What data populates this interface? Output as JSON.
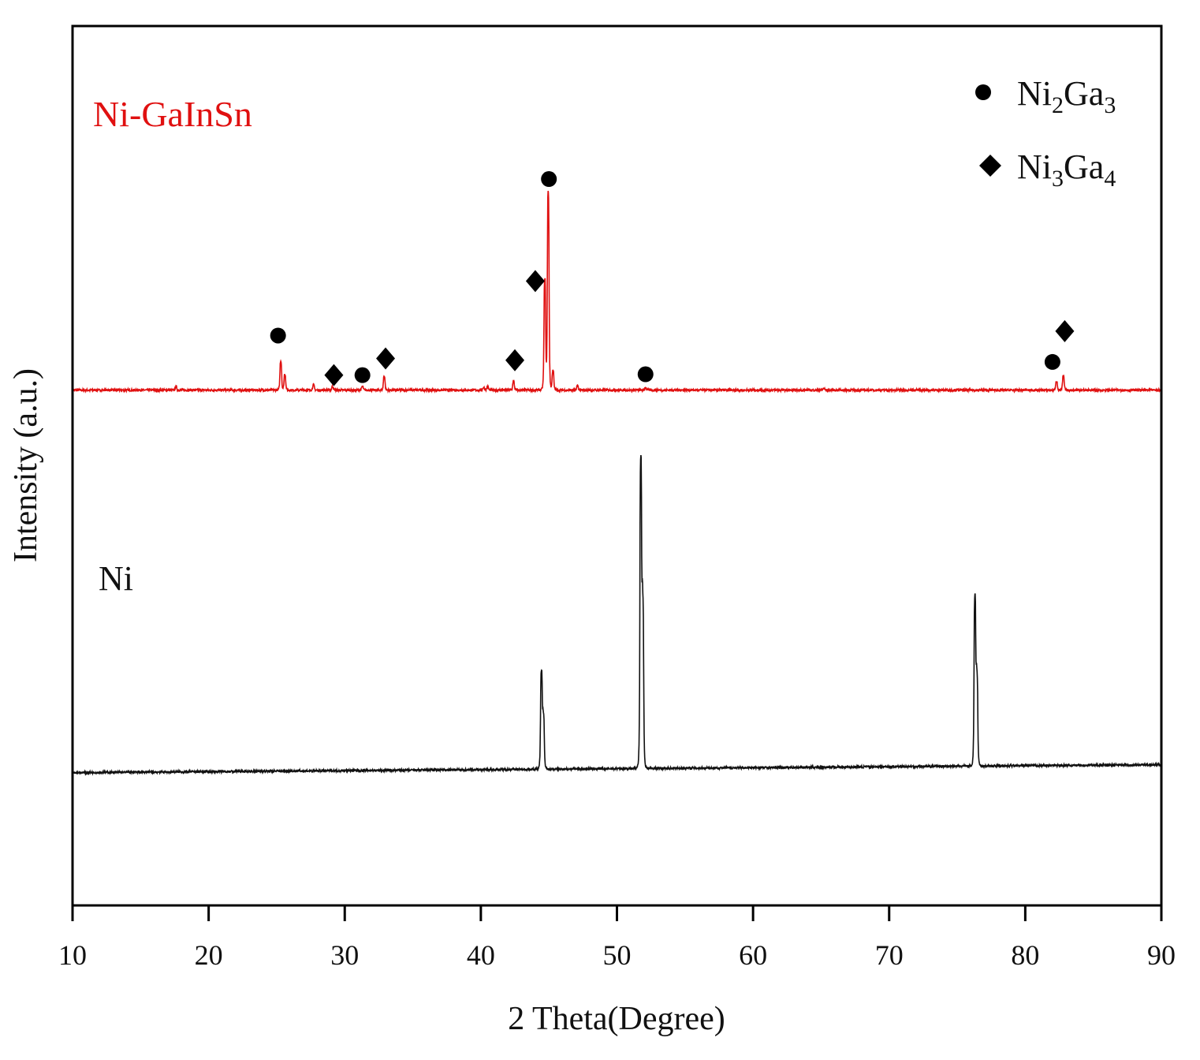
{
  "chart_data": {
    "type": "line",
    "title": "",
    "xlabel": "2 Theta(Degree)",
    "ylabel": "Intensity (a.u.)",
    "xlim": [
      10,
      90
    ],
    "ylim": [
      0,
      1000
    ],
    "xticks": [
      "10",
      "20",
      "30",
      "40",
      "50",
      "60",
      "70",
      "80",
      "90"
    ],
    "grid": false,
    "series": [
      {
        "name": "Ni-GaInSn",
        "label": "Ni-GaInSn",
        "color": "#e01010",
        "baseline": [
          586,
          586
        ],
        "peaks": [
          [
            17.6,
            4
          ],
          [
            25.3,
            33
          ],
          [
            25.6,
            18
          ],
          [
            27.7,
            6
          ],
          [
            29.1,
            4
          ],
          [
            31.3,
            4
          ],
          [
            32.9,
            16
          ],
          [
            40.2,
            3
          ],
          [
            40.5,
            4
          ],
          [
            42.4,
            10
          ],
          [
            44.7,
            125
          ],
          [
            44.95,
            225
          ],
          [
            45.3,
            22
          ],
          [
            47.1,
            5
          ],
          [
            52.1,
            3
          ],
          [
            65.2,
            2
          ],
          [
            82.3,
            10
          ],
          [
            82.8,
            16
          ]
        ]
      },
      {
        "name": "Ni",
        "label": "Ni",
        "color": "#111111",
        "baseline": [
          151,
          160
        ],
        "peaks": [
          [
            44.45,
            110
          ],
          [
            44.6,
            60
          ],
          [
            51.75,
            345
          ],
          [
            51.9,
            185
          ],
          [
            76.3,
            190
          ],
          [
            76.45,
            100
          ]
        ]
      }
    ],
    "markers": {
      "Ni2Ga3": [
        [
          25.1,
          648
        ],
        [
          31.3,
          603
        ],
        [
          45.0,
          826
        ],
        [
          52.1,
          604
        ],
        [
          82.0,
          618
        ]
      ],
      "Ni3Ga4": [
        [
          29.2,
          603
        ],
        [
          33.0,
          622
        ],
        [
          42.5,
          620
        ],
        [
          44.0,
          710
        ],
        [
          82.9,
          653
        ]
      ]
    },
    "legend": {
      "placement": "top-right",
      "entries": [
        {
          "symbol": "circle",
          "base1": "Ni",
          "sub1": "2",
          "base2": "Ga",
          "sub2": "3"
        },
        {
          "symbol": "diamond",
          "base1": "Ni",
          "sub1": "3",
          "base2": "Ga",
          "sub2": "4"
        }
      ]
    }
  }
}
